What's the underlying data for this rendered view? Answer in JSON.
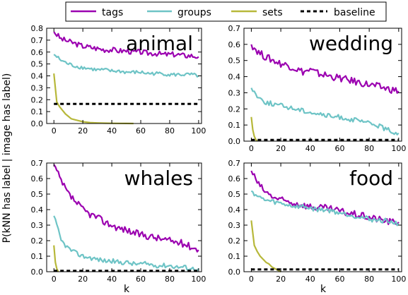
{
  "legend": {
    "placement": "top",
    "items": [
      {
        "label": "tags",
        "color": "#9b00b0",
        "style": "solid"
      },
      {
        "label": "groups",
        "color": "#6ec4c6",
        "style": "solid"
      },
      {
        "label": "sets",
        "color": "#b7b83a",
        "style": "solid"
      },
      {
        "label": "baseline",
        "color": "#000000",
        "style": "dashed"
      }
    ]
  },
  "figure": {
    "ylabel": "P(kNN has label | image has label)",
    "xlabel": "k"
  },
  "chart_data": [
    {
      "type": "line",
      "title": "animal",
      "xlim": [
        -5,
        102
      ],
      "ylim": [
        0,
        0.8
      ],
      "yticks": [
        "0.0",
        "0.1",
        "0.2",
        "0.3",
        "0.4",
        "0.5",
        "0.6",
        "0.7",
        "0.8"
      ],
      "xticks": [
        "0",
        "20",
        "40",
        "60",
        "80",
        "100"
      ],
      "grid": false,
      "series": [
        {
          "name": "tags",
          "x": [
            0,
            5,
            10,
            15,
            20,
            25,
            30,
            35,
            40,
            45,
            50,
            55,
            60,
            65,
            70,
            75,
            80,
            85,
            90,
            95,
            100
          ],
          "y": [
            0.77,
            0.71,
            0.69,
            0.67,
            0.65,
            0.64,
            0.63,
            0.62,
            0.62,
            0.61,
            0.61,
            0.6,
            0.6,
            0.59,
            0.59,
            0.58,
            0.58,
            0.58,
            0.57,
            0.57,
            0.56
          ]
        },
        {
          "name": "groups",
          "x": [
            0,
            5,
            10,
            15,
            20,
            25,
            30,
            35,
            40,
            45,
            50,
            55,
            60,
            65,
            70,
            75,
            80,
            85,
            90,
            95,
            100
          ],
          "y": [
            0.58,
            0.53,
            0.5,
            0.48,
            0.47,
            0.46,
            0.45,
            0.45,
            0.44,
            0.44,
            0.43,
            0.43,
            0.43,
            0.42,
            0.42,
            0.42,
            0.41,
            0.41,
            0.41,
            0.41,
            0.4
          ]
        },
        {
          "name": "sets",
          "x": [
            0,
            2,
            4,
            6,
            8,
            10,
            12,
            15,
            20,
            25,
            30,
            35,
            40,
            45,
            50,
            55
          ],
          "y": [
            0.42,
            0.18,
            0.14,
            0.11,
            0.08,
            0.06,
            0.04,
            0.03,
            0.015,
            0.008,
            0.005,
            0.003,
            0.002,
            0.001,
            0.0005,
            0
          ]
        },
        {
          "name": "baseline",
          "x": [
            0,
            100
          ],
          "y": [
            0.165,
            0.165
          ]
        }
      ]
    },
    {
      "type": "line",
      "title": "wedding",
      "xlim": [
        -5,
        102
      ],
      "ylim": [
        0,
        0.7
      ],
      "yticks": [
        "0.0",
        "0.1",
        "0.2",
        "0.3",
        "0.4",
        "0.5",
        "0.6",
        "0.7"
      ],
      "xticks": [
        "0",
        "20",
        "40",
        "60",
        "80",
        "100"
      ],
      "grid": false,
      "series": [
        {
          "name": "tags",
          "x": [
            0,
            5,
            10,
            15,
            20,
            25,
            30,
            35,
            40,
            45,
            50,
            55,
            60,
            65,
            70,
            75,
            80,
            85,
            90,
            95,
            100
          ],
          "y": [
            0.6,
            0.55,
            0.52,
            0.5,
            0.48,
            0.47,
            0.45,
            0.43,
            0.44,
            0.42,
            0.41,
            0.4,
            0.39,
            0.38,
            0.37,
            0.36,
            0.35,
            0.34,
            0.33,
            0.32,
            0.31
          ]
        },
        {
          "name": "groups",
          "x": [
            0,
            5,
            10,
            15,
            20,
            25,
            30,
            35,
            40,
            45,
            50,
            55,
            60,
            65,
            70,
            75,
            80,
            85,
            90,
            95,
            100
          ],
          "y": [
            0.33,
            0.27,
            0.24,
            0.23,
            0.22,
            0.21,
            0.2,
            0.19,
            0.18,
            0.17,
            0.16,
            0.15,
            0.15,
            0.14,
            0.13,
            0.12,
            0.11,
            0.1,
            0.08,
            0.06,
            0.05
          ]
        },
        {
          "name": "sets",
          "x": [
            0,
            1,
            2,
            3,
            4
          ],
          "y": [
            0.15,
            0.07,
            0.03,
            0.01,
            0
          ]
        },
        {
          "name": "baseline",
          "x": [
            0,
            100
          ],
          "y": [
            0.008,
            0.008
          ]
        }
      ]
    },
    {
      "type": "line",
      "title": "whales",
      "xlim": [
        -5,
        102
      ],
      "ylim": [
        0,
        0.7
      ],
      "yticks": [
        "0.0",
        "0.1",
        "0.2",
        "0.3",
        "0.4",
        "0.5",
        "0.6",
        "0.7"
      ],
      "xticks": [
        "0",
        "20",
        "40",
        "60",
        "80",
        "100"
      ],
      "grid": false,
      "series": [
        {
          "name": "tags",
          "x": [
            0,
            5,
            10,
            15,
            20,
            25,
            30,
            35,
            40,
            45,
            50,
            55,
            60,
            65,
            70,
            75,
            80,
            85,
            90,
            95,
            100
          ],
          "y": [
            0.69,
            0.58,
            0.5,
            0.45,
            0.4,
            0.37,
            0.35,
            0.32,
            0.3,
            0.28,
            0.27,
            0.25,
            0.24,
            0.23,
            0.22,
            0.21,
            0.2,
            0.19,
            0.18,
            0.16,
            0.14
          ]
        },
        {
          "name": "groups",
          "x": [
            0,
            5,
            10,
            15,
            20,
            25,
            30,
            35,
            40,
            45,
            50,
            55,
            60,
            65,
            70,
            75,
            80,
            85,
            90,
            95,
            100
          ],
          "y": [
            0.36,
            0.2,
            0.15,
            0.12,
            0.1,
            0.09,
            0.08,
            0.07,
            0.07,
            0.06,
            0.06,
            0.05,
            0.05,
            0.05,
            0.04,
            0.04,
            0.04,
            0.03,
            0.03,
            0.02,
            0.02
          ]
        },
        {
          "name": "sets",
          "x": [
            0,
            1,
            2,
            3
          ],
          "y": [
            0.17,
            0.06,
            0.02,
            0
          ]
        },
        {
          "name": "baseline",
          "x": [
            0,
            100
          ],
          "y": [
            0.006,
            0.006
          ]
        }
      ]
    },
    {
      "type": "line",
      "title": "food",
      "xlim": [
        -5,
        102
      ],
      "ylim": [
        0,
        0.7
      ],
      "yticks": [
        "0.0",
        "0.1",
        "0.2",
        "0.3",
        "0.4",
        "0.5",
        "0.6",
        "0.7"
      ],
      "xticks": [
        "0",
        "20",
        "40",
        "60",
        "80",
        "100"
      ],
      "grid": false,
      "series": [
        {
          "name": "tags",
          "x": [
            0,
            5,
            10,
            15,
            20,
            25,
            30,
            35,
            40,
            45,
            50,
            55,
            60,
            65,
            70,
            75,
            80,
            85,
            90,
            95,
            100
          ],
          "y": [
            0.65,
            0.56,
            0.51,
            0.48,
            0.46,
            0.45,
            0.44,
            0.43,
            0.42,
            0.41,
            0.41,
            0.4,
            0.39,
            0.38,
            0.37,
            0.36,
            0.35,
            0.34,
            0.33,
            0.32,
            0.32
          ]
        },
        {
          "name": "groups",
          "x": [
            0,
            5,
            10,
            15,
            20,
            25,
            30,
            35,
            40,
            45,
            50,
            55,
            60,
            65,
            70,
            75,
            80,
            85,
            90,
            95,
            100
          ],
          "y": [
            0.52,
            0.48,
            0.46,
            0.45,
            0.44,
            0.43,
            0.42,
            0.42,
            0.41,
            0.4,
            0.4,
            0.39,
            0.38,
            0.37,
            0.36,
            0.35,
            0.34,
            0.33,
            0.33,
            0.32,
            0.31
          ]
        },
        {
          "name": "sets",
          "x": [
            0,
            2,
            4,
            6,
            8,
            10,
            12,
            14,
            16,
            18,
            20
          ],
          "y": [
            0.33,
            0.17,
            0.13,
            0.1,
            0.08,
            0.06,
            0.05,
            0.03,
            0.02,
            0.01,
            0
          ]
        },
        {
          "name": "baseline",
          "x": [
            0,
            100
          ],
          "y": [
            0.015,
            0.015
          ]
        }
      ]
    }
  ]
}
